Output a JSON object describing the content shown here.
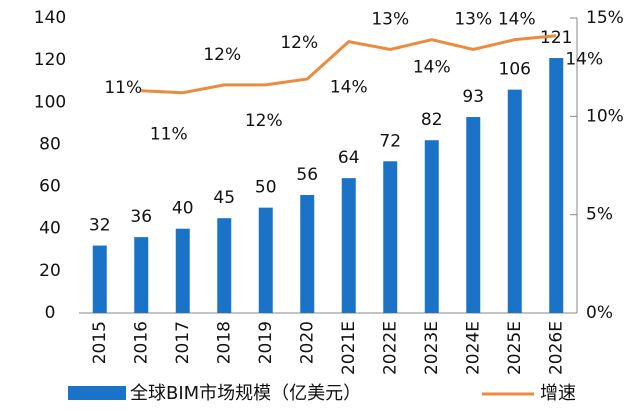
{
  "chart_data": {
    "type": "bar_line",
    "categories": [
      "2015",
      "2016",
      "2017",
      "2018",
      "2019",
      "2020",
      "2021E",
      "2022E",
      "2023E",
      "2024E",
      "2025E",
      "2026E"
    ],
    "series": [
      {
        "name": "全球BIM市场规模（亿美元）",
        "type": "bar",
        "color": "#1a73c6",
        "values": [
          32,
          36,
          40,
          45,
          50,
          56,
          64,
          72,
          82,
          93,
          106,
          121
        ]
      },
      {
        "name": "增速",
        "type": "line",
        "axis": "y2",
        "color": "#ec8a3f",
        "values": [
          null,
          11.3,
          11.2,
          11.6,
          11.6,
          11.9,
          13.8,
          13.4,
          13.9,
          13.4,
          13.9,
          14.1
        ],
        "value_labels": [
          null,
          "11%",
          "11%",
          "12%",
          "12%",
          "12%",
          "14%",
          "13%",
          "14%",
          "13%",
          "14%",
          "14%"
        ]
      }
    ],
    "ylim": [
      0,
      140
    ],
    "yticks": [
      0,
      20,
      40,
      60,
      80,
      100,
      120,
      140
    ],
    "y2lim": [
      0,
      15
    ],
    "y2ticks": [
      {
        "value": 0,
        "label": "0%"
      },
      {
        "value": 5,
        "label": "5%"
      },
      {
        "value": 10,
        "label": "10%"
      },
      {
        "value": 15,
        "label": "15%"
      }
    ],
    "legend": "bottom"
  }
}
